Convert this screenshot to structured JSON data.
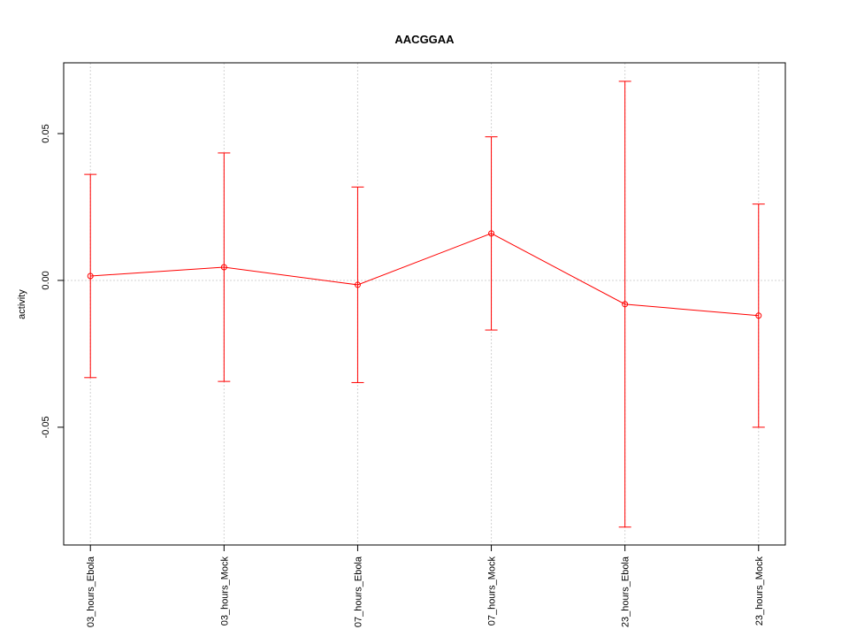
{
  "chart_data": {
    "type": "line",
    "title": "AACGGAA",
    "y_label": "activity",
    "categories": [
      "03_hours_Ebola",
      "03_hours_Mock",
      "07_hours_Ebola",
      "07_hours_Mock",
      "23_hours_Ebola",
      "23_hours_Mock"
    ],
    "series": [
      {
        "color": "#ff0000",
        "values": [
          0.0015,
          0.0045,
          -0.0015,
          0.016,
          -0.0081,
          -0.012
        ],
        "errors": [
          0.0346,
          0.0389,
          0.0333,
          0.0329,
          0.0759,
          0.038
        ]
      }
    ],
    "ylim": [
      -0.0901,
      0.0741
    ],
    "yticks": [
      -0.05,
      {
        "value": 0,
        "label": "0.00"
      },
      0.05
    ],
    "grid": true,
    "reference_line": 0
  }
}
